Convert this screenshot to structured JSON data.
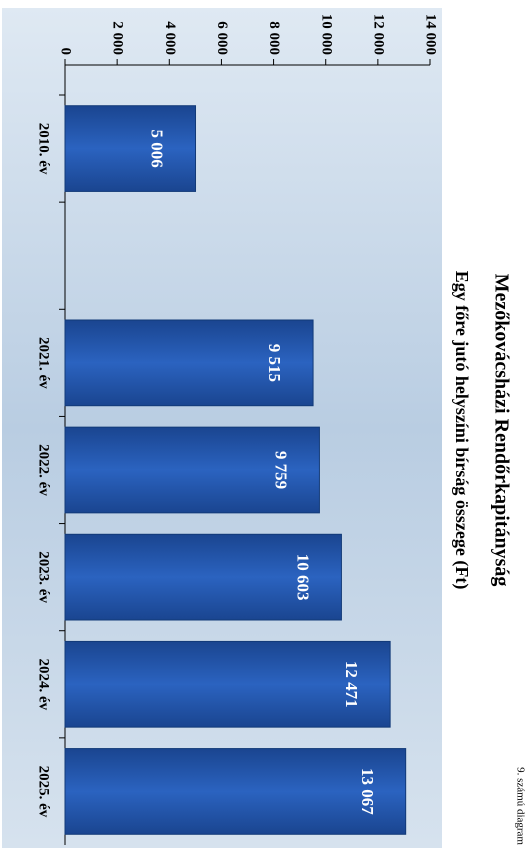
{
  "chart_data": {
    "type": "bar",
    "title": "Mezőkovácsházi Rendőrkapitányság",
    "subtitle": "Egy főre jutó helyszíni bírság összege (Ft)",
    "caption": "9. számú diagram",
    "categories": [
      "2010. év",
      null,
      "2021. év",
      "2022. év",
      "2023. év",
      "2024. év",
      "2025. év"
    ],
    "values": [
      5006,
      null,
      9515,
      9759,
      10603,
      12471,
      13067
    ],
    "value_labels": [
      "5 006",
      null,
      "9 515",
      "9 759",
      "10 603",
      "12 471",
      "13 067"
    ],
    "color": "#1f4e9c",
    "ylim": [
      0,
      14000
    ],
    "yticks": [
      0,
      {
        "value": 2000,
        "label": "2 000"
      },
      {
        "value": 4000,
        "label": "4 000"
      },
      {
        "value": 6000,
        "label": "6 000"
      },
      {
        "value": 8000,
        "label": "8 000"
      },
      {
        "value": 10000,
        "label": "10 000"
      },
      {
        "value": 12000,
        "label": "12 000"
      },
      {
        "value": 14000,
        "label": "14 000"
      }
    ]
  }
}
